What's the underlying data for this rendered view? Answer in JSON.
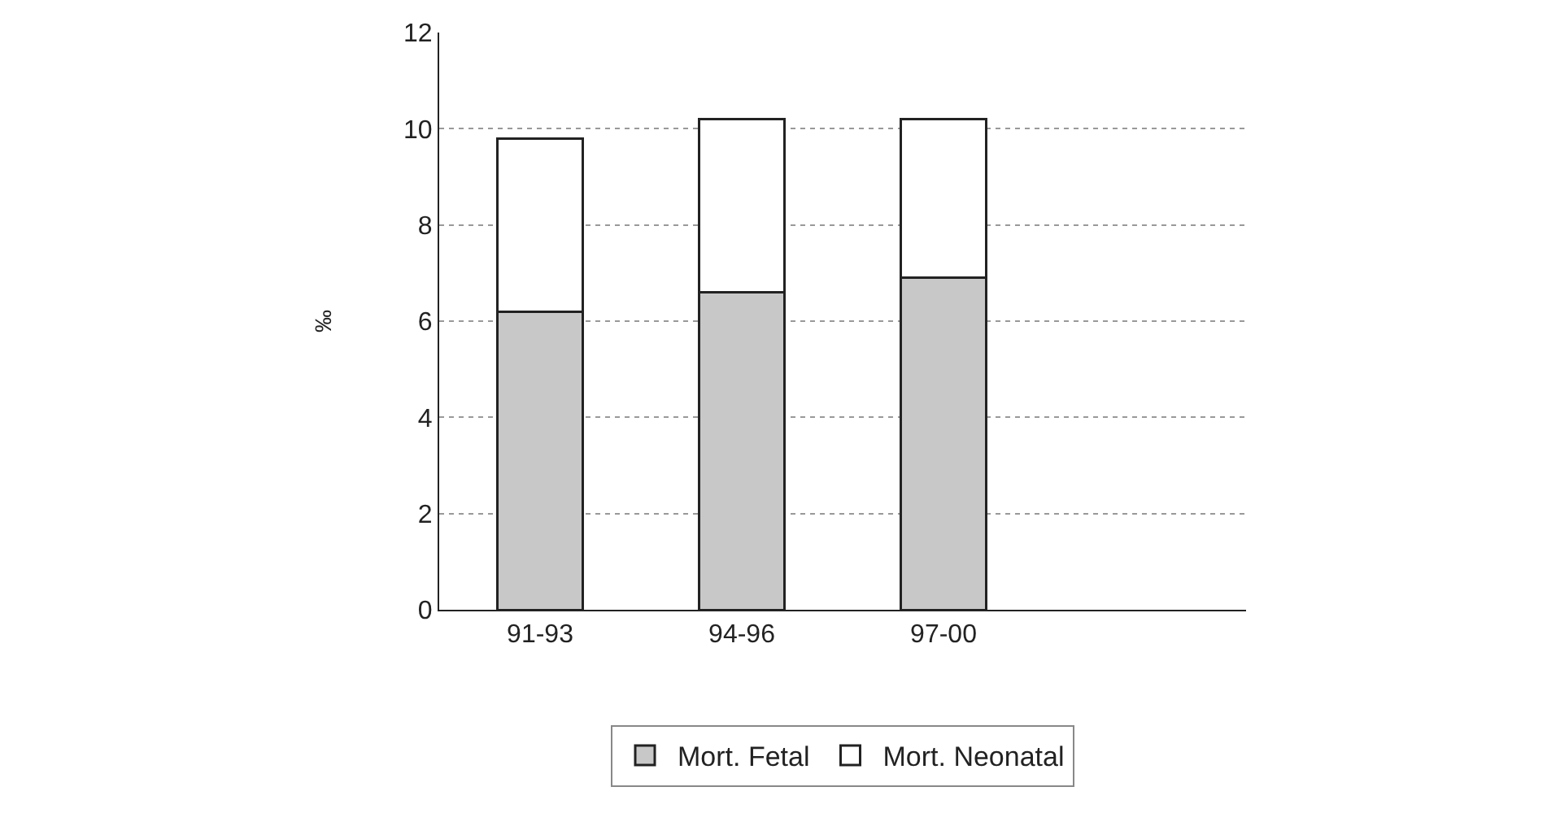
{
  "chart_data": {
    "type": "bar",
    "stacked": true,
    "ylabel": "‰",
    "categories": [
      "91-93",
      "94-96",
      "97-00",
      null
    ],
    "series": [
      {
        "name": "Mort. Fetal",
        "color": "#c8c8c8",
        "values": [
          6.2,
          6.6,
          6.9,
          null
        ]
      },
      {
        "name": "Mort. Neonatal",
        "color": "#ffffff",
        "values": [
          3.6,
          3.6,
          3.3,
          null
        ]
      }
    ],
    "ylim": [
      0,
      12
    ],
    "yticks": [
      0,
      2,
      4,
      6,
      8,
      10,
      12
    ],
    "grid": "y",
    "legend": "bottom"
  }
}
